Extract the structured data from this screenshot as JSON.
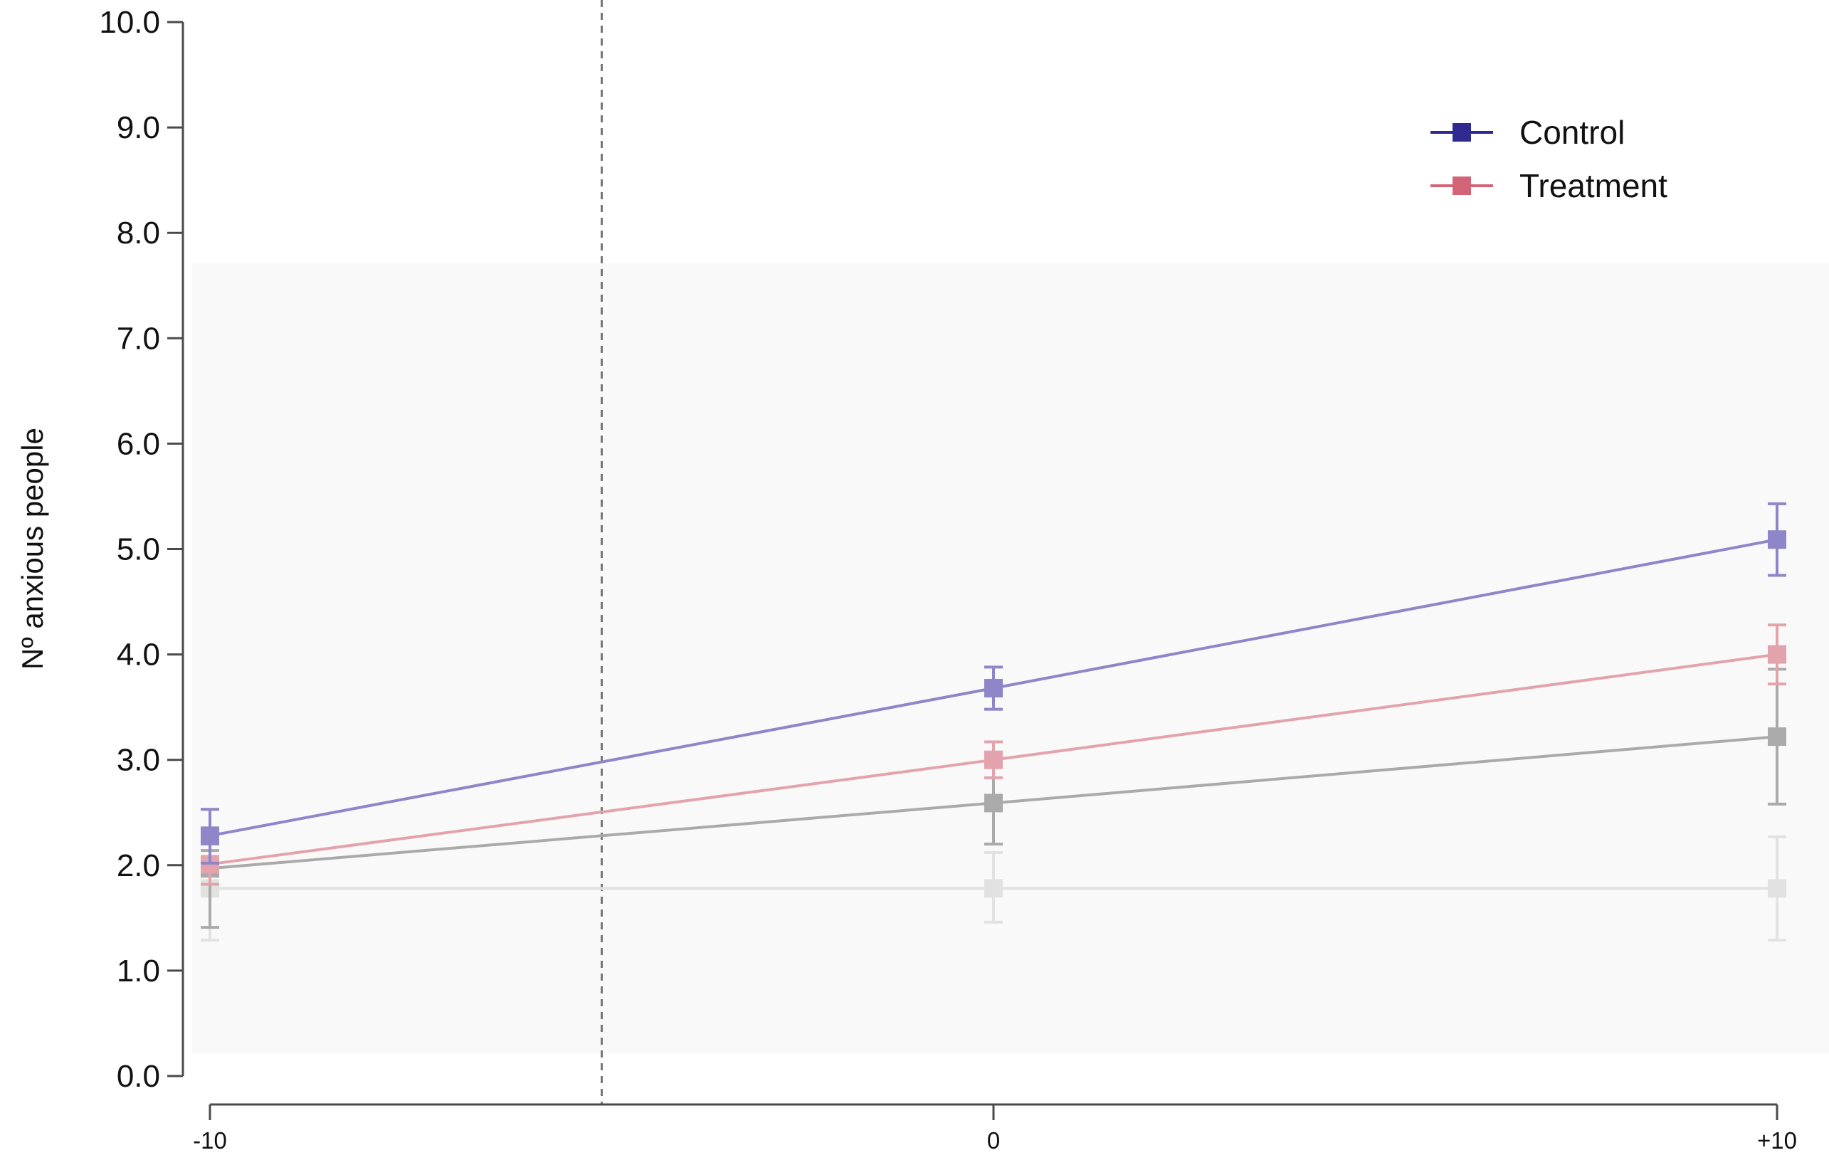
{
  "chart_data": {
    "type": "line",
    "title": "",
    "xlabel": "",
    "ylabel": "Nº anxious people",
    "x": [
      -10,
      0,
      10
    ],
    "x_tick_labels": [
      "-10",
      "0",
      "+10"
    ],
    "xlim": [
      -10,
      10
    ],
    "ylim": [
      0,
      10
    ],
    "y_ticks": [
      "0.0",
      "1.0",
      "2.0",
      "3.0",
      "4.0",
      "5.0",
      "6.0",
      "7.0",
      "8.0",
      "9.0",
      "10.0"
    ],
    "grid": false,
    "legend": "top-right",
    "vertical_reference_x": -5,
    "series": [
      {
        "name": "Control",
        "color": "#8e86c8",
        "legend_color": "#2e2a8f",
        "values": [
          2.28,
          3.68,
          5.09
        ],
        "err_low": [
          2.02,
          3.48,
          4.75
        ],
        "err_high": [
          2.53,
          3.88,
          5.43
        ]
      },
      {
        "name": "Treatment",
        "color": "#e3a3ad",
        "legend_color": "#d26478",
        "values": [
          2.01,
          3.0,
          4.0
        ],
        "err_low": [
          1.82,
          2.83,
          3.72
        ],
        "err_high": [
          2.2,
          3.17,
          4.28
        ]
      },
      {
        "name": "",
        "color": "#aaaaaa",
        "values": [
          1.97,
          2.59,
          3.22
        ],
        "err_low": [
          1.41,
          2.2,
          2.58
        ],
        "err_high": [
          2.14,
          2.98,
          3.86
        ]
      },
      {
        "name": "",
        "color": "#e2e2e2",
        "values": [
          1.78,
          1.78,
          1.78
        ],
        "err_low": [
          1.29,
          1.46,
          1.29
        ],
        "err_high": [
          2.27,
          2.12,
          2.27
        ]
      }
    ]
  }
}
